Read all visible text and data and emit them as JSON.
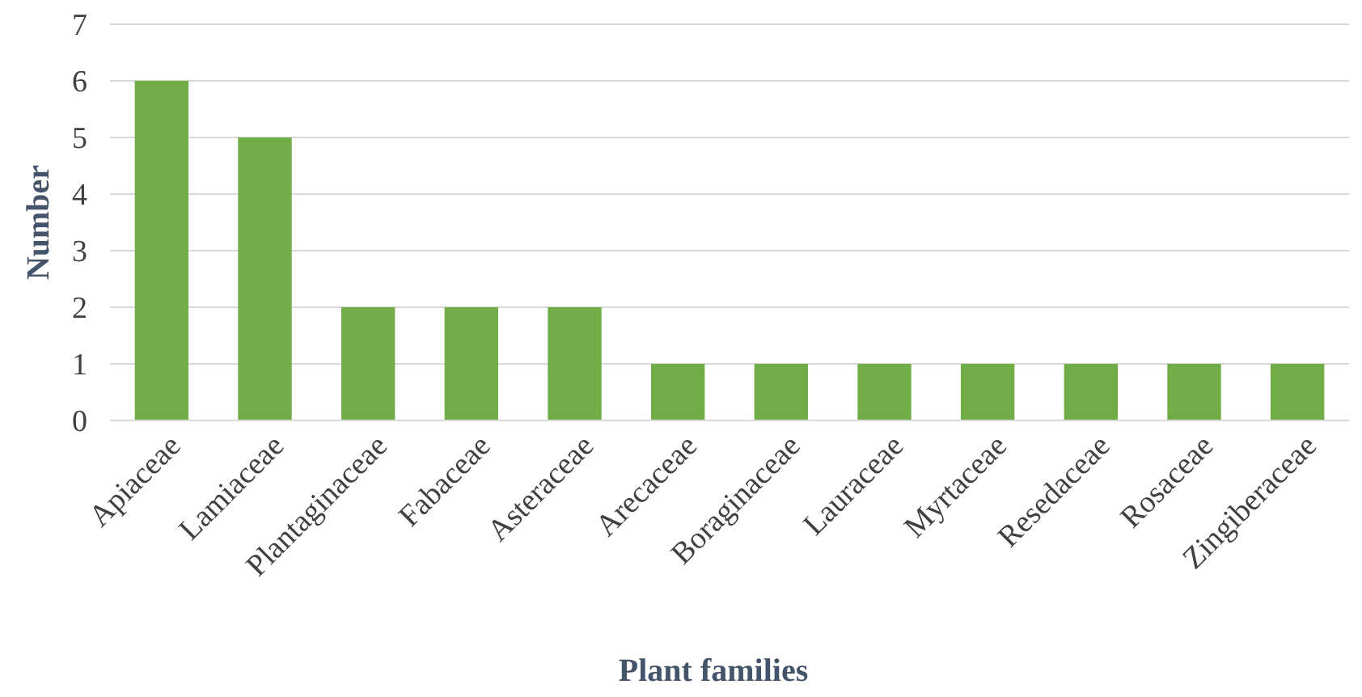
{
  "chart_data": {
    "type": "bar",
    "xlabel": "Plant families",
    "ylabel": "Number",
    "categories": [
      "Apiaceae",
      "Lamiaceae",
      "Plantaginaceae",
      "Fabaceae",
      "Asteraceae",
      "Arecaceae",
      "Boraginaceae",
      "Lauraceae",
      "Myrtaceae",
      "Resedaceae",
      "Rosaceae",
      "Zingiberaceae"
    ],
    "values": [
      6,
      5,
      2,
      2,
      2,
      1,
      1,
      1,
      1,
      1,
      1,
      1
    ],
    "color": "#70ad47",
    "ylim": [
      0,
      7
    ],
    "yticks": [
      0,
      1,
      2,
      3,
      4,
      5,
      6,
      7
    ],
    "grid": "y"
  }
}
